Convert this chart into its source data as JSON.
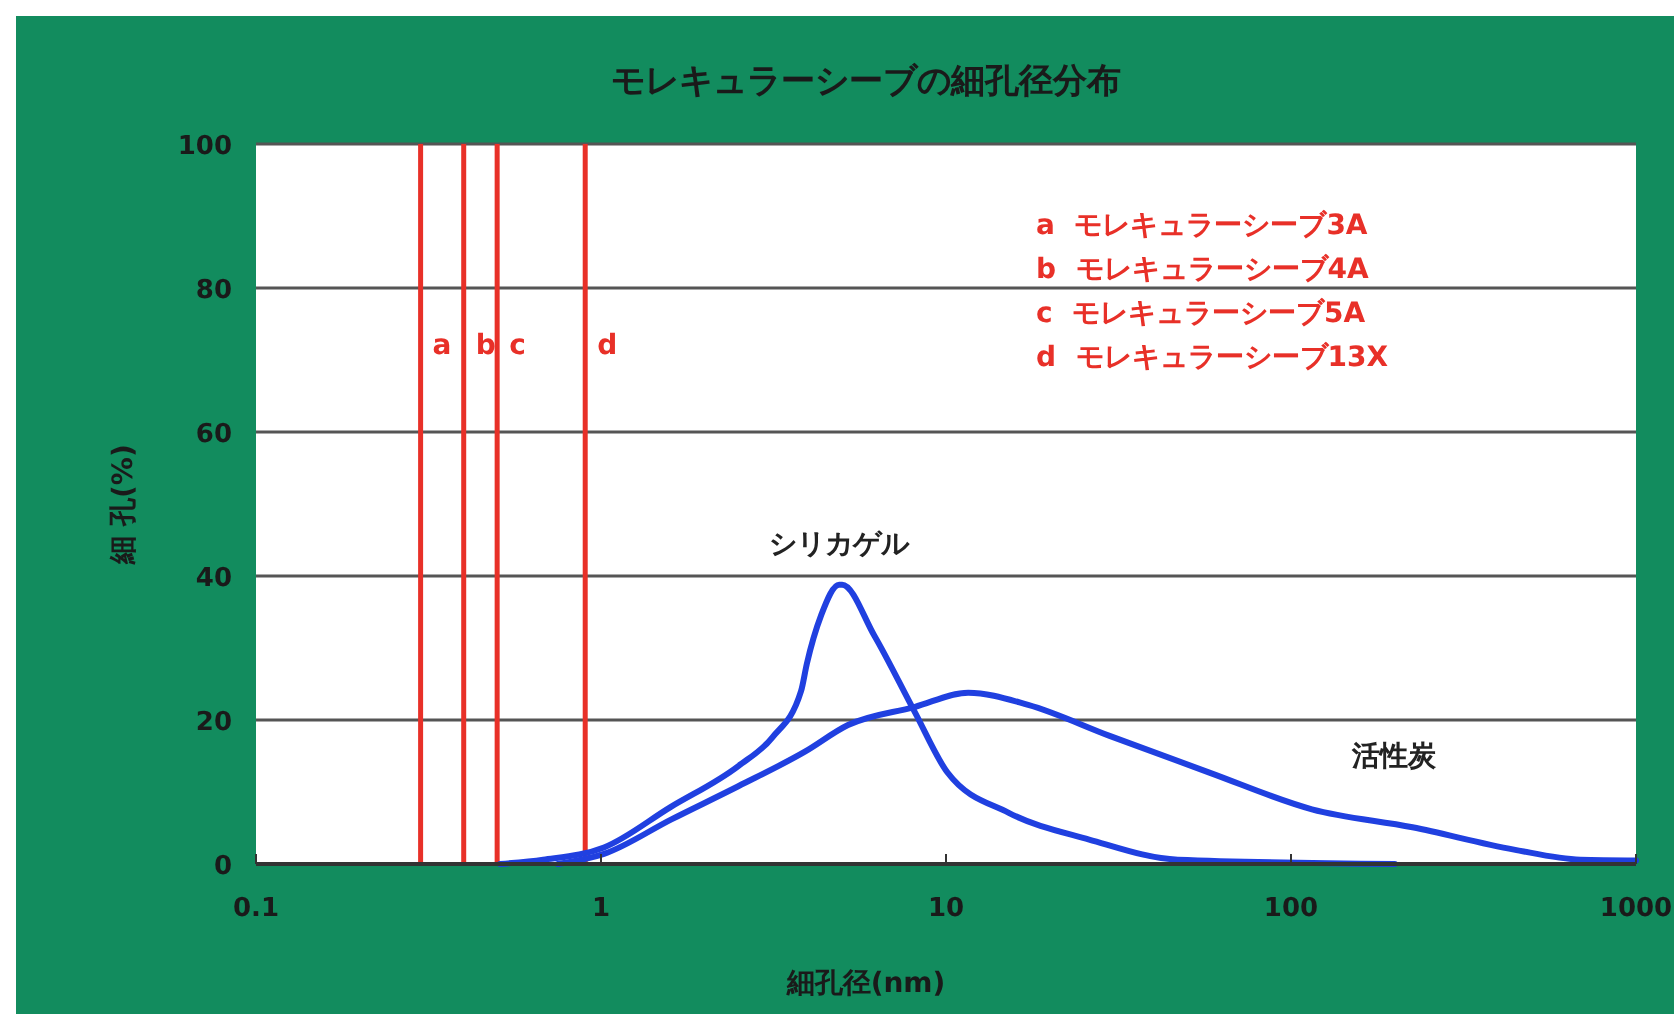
{
  "chart_data": {
    "type": "line",
    "title": "モレキュラーシーブの細孔径分布",
    "xlabel": "細孔径(nm)",
    "ylabel": "細 孔(%)",
    "log": "x",
    "xlim": [
      0.1,
      1000
    ],
    "xticks": [
      0.1,
      1,
      10,
      100,
      1000
    ],
    "ylim": [
      0,
      100
    ],
    "yticks": [
      0,
      20,
      40,
      60,
      80,
      100
    ],
    "grid": "y",
    "marker": "none",
    "line_style": "solid",
    "series": [
      {
        "name": "シリカゲル",
        "color": "#2040e0",
        "x": [
          0.51,
          0.68,
          1.02,
          1.59,
          2.5,
          3.14,
          3.8,
          3.95,
          4.35,
          4.9,
          5.0,
          6.2,
          8.1,
          10.1,
          15.2,
          26,
          47,
          200
        ],
        "values": [
          0,
          0.6,
          2.3,
          7.9,
          13.6,
          17.6,
          24,
          27.8,
          34.6,
          38.8,
          38.8,
          31.7,
          21.2,
          12.7,
          7.1,
          3.4,
          0.6,
          0
        ]
      },
      {
        "name": "活性炭",
        "color": "#2040e0",
        "x": [
          0.75,
          1.02,
          1.6,
          2.5,
          3.9,
          5.2,
          8.1,
          11.6,
          17.3,
          29.8,
          58,
          115,
          225,
          443,
          690,
          1000
        ],
        "values": [
          0,
          1.4,
          6.2,
          10.8,
          15.6,
          19.3,
          21.8,
          23.8,
          22.1,
          17.8,
          12.7,
          7.6,
          5.1,
          2.0,
          0.6,
          0.5
        ]
      }
    ],
    "ref_lines": [
      {
        "axis": "x",
        "value": 0.3,
        "label": "a",
        "color": "#e83028"
      },
      {
        "axis": "x",
        "value": 0.4,
        "label": "b",
        "color": "#e83028"
      },
      {
        "axis": "x",
        "value": 0.5,
        "label": "c",
        "color": "#e83028"
      },
      {
        "axis": "x",
        "value": 0.9,
        "label": "d",
        "color": "#e83028"
      }
    ],
    "annotations": [
      "a  モレキュラーシーブ3A",
      "b  モレキュラーシーブ4A",
      "c  モレキュラーシーブ5A",
      "d  モレキュラーシーブ13X"
    ]
  }
}
